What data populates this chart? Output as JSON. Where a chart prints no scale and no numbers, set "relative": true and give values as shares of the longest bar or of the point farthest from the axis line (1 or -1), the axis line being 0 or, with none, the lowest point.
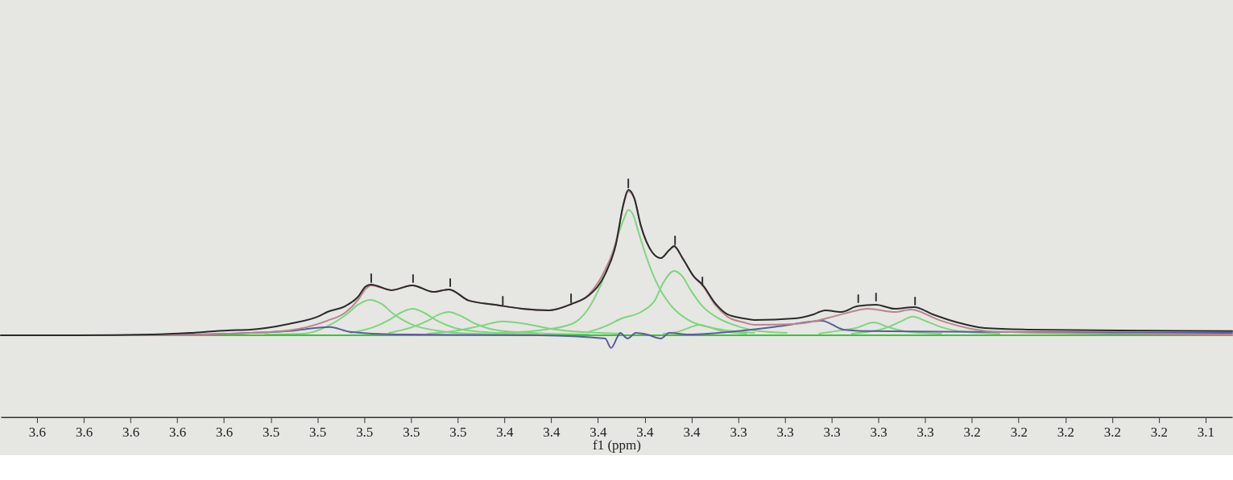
{
  "chart_data": {
    "type": "line",
    "relative": true,
    "xlabel": "f1 (ppm)",
    "xlim": [
      3.6555,
      3.1286
    ],
    "xticks": [
      {
        "value": 3.64,
        "label": "3.6"
      },
      {
        "value": 3.62,
        "label": "3.6"
      },
      {
        "value": 3.6,
        "label": "3.6"
      },
      {
        "value": 3.58,
        "label": "3.6"
      },
      {
        "value": 3.56,
        "label": "3.6"
      },
      {
        "value": 3.54,
        "label": "3.5"
      },
      {
        "value": 3.52,
        "label": "3.5"
      },
      {
        "value": 3.5,
        "label": "3.5"
      },
      {
        "value": 3.48,
        "label": "3.5"
      },
      {
        "value": 3.46,
        "label": "3.5"
      },
      {
        "value": 3.44,
        "label": "3.4"
      },
      {
        "value": 3.42,
        "label": "3.4"
      },
      {
        "value": 3.4,
        "label": "3.4"
      },
      {
        "value": 3.38,
        "label": "3.4"
      },
      {
        "value": 3.36,
        "label": "3.4"
      },
      {
        "value": 3.34,
        "label": "3.3"
      },
      {
        "value": 3.32,
        "label": "3.3"
      },
      {
        "value": 3.3,
        "label": "3.3"
      },
      {
        "value": 3.28,
        "label": "3.3"
      },
      {
        "value": 3.26,
        "label": "3.3"
      },
      {
        "value": 3.24,
        "label": "3.2"
      },
      {
        "value": 3.22,
        "label": "3.2"
      },
      {
        "value": 3.2,
        "label": "3.2"
      },
      {
        "value": 3.18,
        "label": "3.2"
      },
      {
        "value": 3.16,
        "label": "3.2"
      },
      {
        "value": 3.14,
        "label": "3.1"
      }
    ],
    "series": [
      {
        "color": "#7fd47f",
        "x": [
          3.5423,
          3.5258,
          3.5158,
          3.5076,
          3.5026,
          3.4976,
          3.4926,
          3.4877,
          3.4794,
          3.4695,
          3.4529,
          3.4254
        ],
        "values": [
          0.005,
          0.01,
          0.057,
          0.134,
          0.196,
          0.227,
          0.201,
          0.139,
          0.067,
          0.031,
          0.01,
          0.005
        ]
      },
      {
        "color": "#7fd47f",
        "x": [
          3.5059,
          3.496,
          3.4893,
          3.4844,
          3.4791,
          3.4744,
          3.4688,
          3.4612,
          3.4496,
          3.4254
        ],
        "values": [
          0.015,
          0.052,
          0.098,
          0.144,
          0.17,
          0.144,
          0.093,
          0.046,
          0.021,
          0.005
        ]
      },
      {
        "color": "#7fd47f",
        "x": [
          3.4893,
          3.4794,
          3.4728,
          3.4678,
          3.4638,
          3.4595,
          3.4529,
          3.4446,
          3.429,
          3.4041
        ],
        "values": [
          0.015,
          0.052,
          0.093,
          0.134,
          0.149,
          0.129,
          0.077,
          0.036,
          0.015,
          0.005
        ]
      },
      {
        "color": "#7fd47f",
        "x": [
          3.4728,
          3.4596,
          3.4497,
          3.4407,
          3.4307,
          3.4201,
          3.4076,
          3.39
        ],
        "values": [
          0.01,
          0.031,
          0.062,
          0.088,
          0.072,
          0.041,
          0.021,
          0.01
        ]
      },
      {
        "color": "#7fd47f",
        "x": [
          3.443,
          3.4254,
          3.4112,
          3.4041,
          3.3987,
          3.3944,
          3.3909,
          3.3887,
          3.387,
          3.3848,
          3.3827,
          3.3791,
          3.3745,
          3.3685,
          3.3614,
          3.3507,
          3.3331
        ],
        "values": [
          0.015,
          0.031,
          0.072,
          0.17,
          0.325,
          0.495,
          0.665,
          0.753,
          0.804,
          0.768,
          0.665,
          0.495,
          0.325,
          0.186,
          0.098,
          0.046,
          0.015
        ]
      },
      {
        "color": "#7fd47f",
        "x": [
          3.4041,
          3.3969,
          3.3898,
          3.3816,
          3.3755,
          3.3719,
          3.3674,
          3.3638,
          3.3603,
          3.3553,
          3.3496,
          3.34,
          3.3331,
          3.3192
        ],
        "values": [
          0.021,
          0.057,
          0.108,
          0.149,
          0.227,
          0.34,
          0.412,
          0.376,
          0.289,
          0.186,
          0.119,
          0.057,
          0.031,
          0.015
        ]
      },
      {
        "color": "#7fd47f",
        "x": [
          3.3719,
          3.3649,
          3.3603,
          3.3567,
          3.3524,
          3.3471,
          3.3365
        ],
        "values": [
          0.01,
          0.026,
          0.052,
          0.067,
          0.052,
          0.026,
          0.01
        ]
      },
      {
        "color": "#7fd47f",
        "x": [
          3.3053,
          3.2983,
          3.2897,
          3.282,
          3.2758,
          3.2671,
          3.2531
        ],
        "values": [
          0.01,
          0.026,
          0.046,
          0.082,
          0.052,
          0.021,
          0.01
        ]
      },
      {
        "color": "#7fd47f",
        "x": [
          3.2914,
          3.2844,
          3.2758,
          3.2705,
          3.2653,
          3.2601,
          3.2531,
          3.2427,
          3.2282
        ],
        "values": [
          0.01,
          0.021,
          0.052,
          0.088,
          0.119,
          0.093,
          0.052,
          0.021,
          0.01
        ]
      },
      {
        "color": "#2ecc2e",
        "x": [
          3.6005,
          3.1286
        ],
        "values": [
          0,
          0
        ]
      },
      {
        "color": "#5c5c9c",
        "x": [
          3.5908,
          3.5584,
          3.5324,
          3.5148,
          3.5059,
          3.486,
          3.4254,
          3.3969,
          3.3944,
          3.3916,
          3.3905,
          3.3873,
          3.3838,
          3.3791,
          3.3731,
          3.3695,
          3.3614,
          3.3376,
          3.3226,
          3.3042,
          3.2949,
          3.2844,
          3.2319,
          3.1286
        ],
        "values": [
          0,
          0.01,
          0.026,
          0.052,
          0.021,
          0.005,
          0,
          -0.021,
          -0.082,
          -0.01,
          0.015,
          -0.021,
          0.015,
          0.005,
          -0.021,
          0.015,
          0.005,
          0.031,
          0.057,
          0.093,
          0.036,
          0.026,
          0.021,
          0.015
        ]
      },
      {
        "color": "#b8868c",
        "x": [
          3.6555,
          3.5908,
          3.5584,
          3.5324,
          3.5158,
          3.5082,
          3.5026,
          3.4993,
          3.497,
          3.4883,
          3.4794,
          3.4705,
          3.4638,
          3.4552,
          3.444,
          3.4325,
          3.4208,
          3.4112,
          3.4041,
          3.3969,
          3.3923,
          3.3891,
          3.387,
          3.3845,
          3.3816,
          3.3767,
          3.3731,
          3.3695,
          3.3674,
          3.3638,
          3.3589,
          3.3553,
          3.3496,
          3.3446,
          3.3376,
          3.3331,
          3.3157,
          3.3077,
          3.2983,
          3.289,
          3.2844,
          3.273,
          3.266,
          3.2542,
          3.2403,
          3.2282,
          3.1286
        ],
        "values": [
          0,
          0,
          0.01,
          0.031,
          0.093,
          0.144,
          0.227,
          0.299,
          0.32,
          0.289,
          0.32,
          0.278,
          0.294,
          0.222,
          0.196,
          0.17,
          0.16,
          0.201,
          0.258,
          0.42,
          0.598,
          0.835,
          0.923,
          0.881,
          0.701,
          0.531,
          0.495,
          0.546,
          0.567,
          0.495,
          0.376,
          0.32,
          0.191,
          0.119,
          0.082,
          0.067,
          0.072,
          0.088,
          0.124,
          0.16,
          0.17,
          0.149,
          0.165,
          0.098,
          0.041,
          0.021,
          0.005
        ]
      },
      {
        "color": "#2b2b2b",
        "x": [
          3.6555,
          3.6232,
          3.5908,
          3.5746,
          3.5584,
          3.5487,
          3.5324,
          3.5191,
          3.5158,
          3.5082,
          3.5026,
          3.4993,
          3.497,
          3.4883,
          3.4794,
          3.4705,
          3.4638,
          3.4552,
          3.444,
          3.4325,
          3.4208,
          3.4112,
          3.4041,
          3.3969,
          3.3923,
          3.3891,
          3.387,
          3.3845,
          3.3816,
          3.3767,
          3.3731,
          3.3695,
          3.3674,
          3.3638,
          3.3589,
          3.3553,
          3.3496,
          3.3446,
          3.3376,
          3.3331,
          3.3157,
          3.3077,
          3.3028,
          3.2959,
          3.289,
          3.281,
          3.273,
          3.2647,
          3.2567,
          3.2462,
          3.2345,
          3.2161,
          3.1768,
          3.1286
        ],
        "values": [
          0,
          0,
          0.005,
          0.015,
          0.031,
          0.036,
          0.072,
          0.124,
          0.149,
          0.186,
          0.247,
          0.314,
          0.325,
          0.289,
          0.32,
          0.278,
          0.294,
          0.222,
          0.196,
          0.17,
          0.16,
          0.201,
          0.253,
          0.392,
          0.582,
          0.84,
          0.933,
          0.881,
          0.701,
          0.531,
          0.495,
          0.546,
          0.572,
          0.495,
          0.376,
          0.325,
          0.201,
          0.134,
          0.108,
          0.098,
          0.108,
          0.134,
          0.16,
          0.149,
          0.186,
          0.196,
          0.17,
          0.18,
          0.134,
          0.082,
          0.046,
          0.036,
          0.031,
          0.026
        ]
      },
      {
        "color": "#333333",
        "x": [
          3.497,
          3.497
        ],
        "values": [
          0.34,
          0.392
        ]
      },
      {
        "color": "#333333",
        "x": [
          3.4791,
          3.4791
        ],
        "values": [
          0.34,
          0.387
        ]
      },
      {
        "color": "#333333",
        "x": [
          3.4632,
          3.4632
        ],
        "values": [
          0.314,
          0.361
        ]
      },
      {
        "color": "#333333",
        "x": [
          3.4407,
          3.4407
        ],
        "values": [
          0.196,
          0.247
        ]
      },
      {
        "color": "#333333",
        "x": [
          3.4115,
          3.4115
        ],
        "values": [
          0.211,
          0.263
        ]
      },
      {
        "color": "#333333",
        "x": [
          3.387,
          3.387
        ],
        "values": [
          0.948,
          1
        ]
      },
      {
        "color": "#333333",
        "x": [
          3.367,
          3.367
        ],
        "values": [
          0.582,
          0.634
        ]
      },
      {
        "color": "#333333",
        "x": [
          3.3553,
          3.3553
        ],
        "values": [
          0.32,
          0.371
        ]
      },
      {
        "color": "#333333",
        "x": [
          3.2886,
          3.2886
        ],
        "values": [
          0.211,
          0.258
        ]
      },
      {
        "color": "#333333",
        "x": [
          3.281,
          3.281
        ],
        "values": [
          0.222,
          0.268
        ]
      },
      {
        "color": "#333333",
        "x": [
          3.2643,
          3.2643
        ],
        "values": [
          0.196,
          0.242
        ]
      }
    ]
  }
}
